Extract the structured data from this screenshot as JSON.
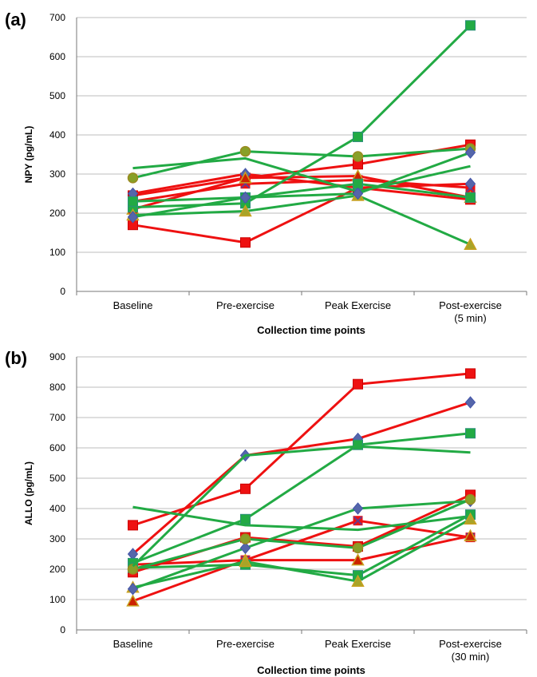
{
  "colors": {
    "red": "#ee1111",
    "green": "#22aa44",
    "grid": "#bdbdbd",
    "axis": "#777777"
  },
  "chart_data": [
    {
      "type": "line",
      "panel_label": "(a)",
      "xlabel": "Collection time points",
      "ylabel": "NPY (pg/mL)",
      "ylim": [
        0,
        700
      ],
      "yticks": [
        0,
        100,
        200,
        300,
        400,
        500,
        600,
        700
      ],
      "grid": true,
      "categories": [
        [
          "Baseline"
        ],
        [
          "Pre-exercise"
        ],
        [
          "Peak Exercise"
        ],
        [
          "Post-exercise",
          "(5 min)"
        ]
      ],
      "series": [
        {
          "color": "red",
          "marker": "square",
          "values": [
            170,
            125,
            265,
            235
          ]
        },
        {
          "color": "red",
          "marker": "square",
          "values": [
            245,
            290,
            325,
            375
          ]
        },
        {
          "color": "red",
          "marker": "cross",
          "values": [
            230,
            275,
            285,
            265
          ]
        },
        {
          "color": "red",
          "marker": "diamond",
          "values": [
            250,
            300,
            265,
            275
          ]
        },
        {
          "color": "red",
          "marker": "triangle",
          "values": [
            210,
            290,
            295,
            240
          ]
        },
        {
          "color": "green",
          "marker": "square",
          "values": [
            215,
            225,
            395,
            680
          ]
        },
        {
          "color": "green",
          "marker": "circle",
          "values": [
            290,
            358,
            345,
            365
          ]
        },
        {
          "color": "green",
          "marker": "triangle",
          "values": [
            195,
            205,
            245,
            120
          ]
        },
        {
          "color": "green",
          "marker": "square",
          "values": [
            230,
            240,
            275,
            240
          ]
        },
        {
          "color": "green",
          "marker": "none",
          "values": [
            315,
            340,
            255,
            320
          ]
        },
        {
          "color": "green",
          "marker": "diamond",
          "values": [
            190,
            240,
            250,
            355
          ]
        }
      ]
    },
    {
      "type": "line",
      "panel_label": "(b)",
      "xlabel": "Collection time points",
      "ylabel": "ALLO (pg/mL)",
      "ylim": [
        0,
        900
      ],
      "yticks": [
        0,
        100,
        200,
        300,
        400,
        500,
        600,
        700,
        800,
        900
      ],
      "grid": true,
      "categories": [
        [
          "Baseline"
        ],
        [
          "Pre-exercise"
        ],
        [
          "Peak Exercise"
        ],
        [
          "Post-exercise",
          "(30 min)"
        ]
      ],
      "series": [
        {
          "color": "red",
          "marker": "square",
          "values": [
            345,
            465,
            810,
            845
          ]
        },
        {
          "color": "red",
          "marker": "diamond",
          "values": [
            250,
            575,
            630,
            750
          ]
        },
        {
          "color": "red",
          "marker": "square",
          "values": [
            190,
            305,
            275,
            445
          ]
        },
        {
          "color": "red",
          "marker": "cross",
          "values": [
            215,
            230,
            360,
            305
          ]
        },
        {
          "color": "red",
          "marker": "triangle",
          "values": [
            95,
            230,
            230,
            310
          ]
        },
        {
          "color": "green",
          "marker": "square",
          "values": [
            220,
            365,
            610,
            648
          ]
        },
        {
          "color": "green",
          "marker": "none",
          "values": [
            405,
            345,
            330,
            375
          ]
        },
        {
          "color": "green",
          "marker": "square",
          "values": [
            205,
            215,
            180,
            380
          ]
        },
        {
          "color": "green",
          "marker": "triangle",
          "values": [
            140,
            225,
            160,
            365
          ]
        },
        {
          "color": "green",
          "marker": "diamond",
          "values": [
            135,
            270,
            400,
            425
          ]
        },
        {
          "color": "green",
          "marker": "circle",
          "values": [
            200,
            300,
            270,
            430
          ]
        },
        {
          "color": "green",
          "marker": "none",
          "values": [
            210,
            575,
            605,
            585
          ]
        }
      ]
    }
  ]
}
